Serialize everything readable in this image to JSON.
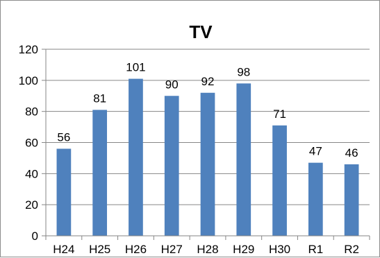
{
  "chart_data": {
    "type": "bar",
    "title": "TV",
    "xlabel": "",
    "ylabel": "",
    "categories": [
      "H24",
      "H25",
      "H26",
      "H27",
      "H28",
      "H29",
      "H30",
      "R1",
      "R2"
    ],
    "values": [
      56,
      81,
      101,
      90,
      92,
      98,
      71,
      47,
      46
    ],
    "ylim": [
      0,
      120
    ],
    "yticks": [
      0,
      20,
      40,
      60,
      80,
      100,
      120
    ],
    "grid": true,
    "legend": "none",
    "bar_color": "#4f81bd",
    "grid_color": "#868686"
  }
}
